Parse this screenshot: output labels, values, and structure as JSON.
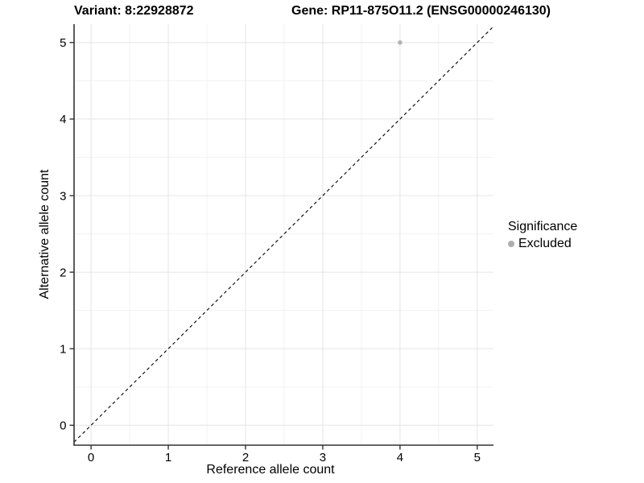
{
  "titles": {
    "variant": "Variant: 8:22928872",
    "gene": "Gene: RP11-875O11.2 (ENSG00000246130)"
  },
  "chart_data": {
    "type": "scatter",
    "xlabel": "Reference allele count",
    "ylabel": "Alternative allele count",
    "x_ticks": [
      0,
      1,
      2,
      3,
      4,
      5
    ],
    "y_ticks": [
      0,
      1,
      2,
      3,
      4,
      5
    ],
    "x_minor_ticks": [
      0.5,
      1.5,
      2.5,
      3.5,
      4.5
    ],
    "y_minor_ticks": [
      0.5,
      1.5,
      2.5,
      3.5,
      4.5
    ],
    "xlim": [
      -0.22,
      5.21
    ],
    "ylim": [
      -0.26,
      5.24
    ],
    "points": [
      {
        "x": 4,
        "y": 5,
        "series": "Excluded"
      }
    ],
    "identity_line": {
      "equation": "y = x",
      "style": "dashed",
      "color": "#000000"
    },
    "grid": "major+minor",
    "legend": {
      "title": "Significance",
      "position": "right",
      "items": [
        {
          "label": "Excluded",
          "color": "#aeaeae"
        }
      ]
    },
    "colors": {
      "axis": "#333333",
      "tick_label": "#000000",
      "grid_major": "#e4e4e4",
      "grid_minor": "#f2f2f2",
      "point": "#b3b3b3"
    }
  }
}
